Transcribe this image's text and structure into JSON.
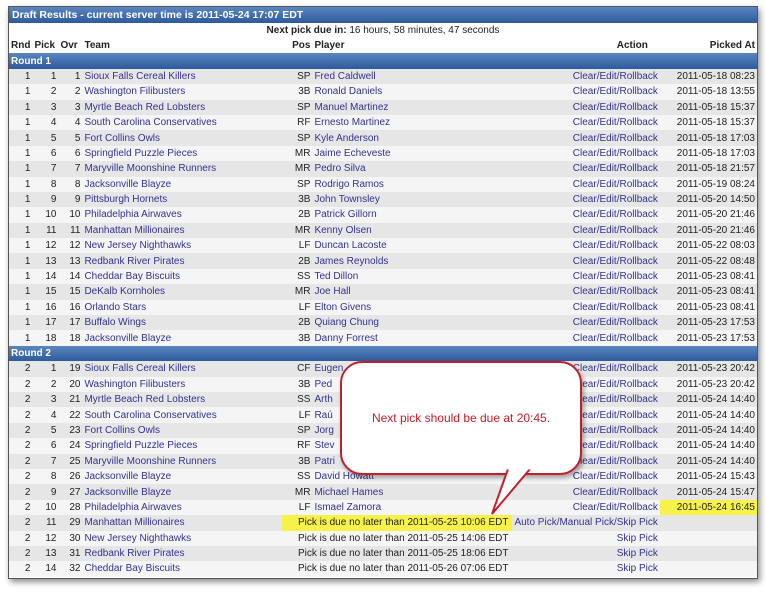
{
  "title": "Draft Results - current server time is 2011-05-24 17:07 EDT",
  "next_pick_label": "Next pick due in:",
  "next_pick_value": " 16 hours, 58 minutes, 47 seconds",
  "headers": {
    "rnd": "Rnd",
    "pick": "Pick",
    "ovr": "Ovr",
    "team": "Team",
    "pos": "Pos",
    "player": "Player",
    "action": "Action",
    "picked_at": "Picked At"
  },
  "highlight_color": "#f6f24a",
  "callout": "Next pick should be due at 20:45.",
  "rounds": [
    {
      "label": "Round 1",
      "picks": [
        [
          "1",
          "1",
          "1",
          "Sioux Falls Cereal Killers",
          "SP",
          "Fred Caldwell",
          "Clear/Edit/Rollback",
          "2011-05-18 08:23"
        ],
        [
          "1",
          "2",
          "2",
          "Washington Filibusters",
          "3B",
          "Ronald Daniels",
          "Clear/Edit/Rollback",
          "2011-05-18 13:55"
        ],
        [
          "1",
          "3",
          "3",
          "Myrtle Beach Red Lobsters",
          "SP",
          "Manuel Martinez",
          "Clear/Edit/Rollback",
          "2011-05-18 15:37"
        ],
        [
          "1",
          "4",
          "4",
          "South Carolina Conservatives",
          "RF",
          "Ernesto Martinez",
          "Clear/Edit/Rollback",
          "2011-05-18 15:37"
        ],
        [
          "1",
          "5",
          "5",
          "Fort Collins Owls",
          "SP",
          "Kyle Anderson",
          "Clear/Edit/Rollback",
          "2011-05-18 17:03"
        ],
        [
          "1",
          "6",
          "6",
          "Springfield Puzzle Pieces",
          "MR",
          "Jaime Echeveste",
          "Clear/Edit/Rollback",
          "2011-05-18 17:03"
        ],
        [
          "1",
          "7",
          "7",
          "Maryville Moonshine Runners",
          "MR",
          "Pedro Silva",
          "Clear/Edit/Rollback",
          "2011-05-18 21:57"
        ],
        [
          "1",
          "8",
          "8",
          "Jacksonville Blayze",
          "SP",
          "Rodrigo Ramos",
          "Clear/Edit/Rollback",
          "2011-05-19 08:24"
        ],
        [
          "1",
          "9",
          "9",
          "Pittsburgh Hornets",
          "3B",
          "John Townsley",
          "Clear/Edit/Rollback",
          "2011-05-20 14:50"
        ],
        [
          "1",
          "10",
          "10",
          "Philadelphia Airwaves",
          "2B",
          "Patrick Gillorn",
          "Clear/Edit/Rollback",
          "2011-05-20 21:46"
        ],
        [
          "1",
          "11",
          "11",
          "Manhattan Millionaires",
          "MR",
          "Kenny Olsen",
          "Clear/Edit/Rollback",
          "2011-05-20 21:46"
        ],
        [
          "1",
          "12",
          "12",
          "New Jersey Nighthawks",
          "LF",
          "Duncan Lacoste",
          "Clear/Edit/Rollback",
          "2011-05-22 08:03"
        ],
        [
          "1",
          "13",
          "13",
          "Redbank River Pirates",
          "2B",
          "James Reynolds",
          "Clear/Edit/Rollback",
          "2011-05-22 08:48"
        ],
        [
          "1",
          "14",
          "14",
          "Cheddar Bay Biscuits",
          "SS",
          "Ted Dillon",
          "Clear/Edit/Rollback",
          "2011-05-23 08:41"
        ],
        [
          "1",
          "15",
          "15",
          "DeKalb Kornholes",
          "MR",
          "Joe Hall",
          "Clear/Edit/Rollback",
          "2011-05-23 08:41"
        ],
        [
          "1",
          "16",
          "16",
          "Orlando Stars",
          "LF",
          "Elton Givens",
          "Clear/Edit/Rollback",
          "2011-05-23 08:41"
        ],
        [
          "1",
          "17",
          "17",
          "Buffalo Wings",
          "2B",
          "Quiang Chung",
          "Clear/Edit/Rollback",
          "2011-05-23 17:53"
        ],
        [
          "1",
          "18",
          "18",
          "Jacksonville Blayze",
          "3B",
          "Danny Forrest",
          "Clear/Edit/Rollback",
          "2011-05-23 17:53"
        ]
      ]
    },
    {
      "label": "Round 2",
      "picks": [
        [
          "2",
          "1",
          "19",
          "Sioux Falls Cereal Killers",
          "CF",
          "Eugen",
          "Clear/Edit/Rollback",
          "2011-05-23 20:42"
        ],
        [
          "2",
          "2",
          "20",
          "Washington Filibusters",
          "3B",
          "Ped",
          "Clear/Edit/Rollback",
          "2011-05-23 20:42"
        ],
        [
          "2",
          "3",
          "21",
          "Myrtle Beach Red Lobsters",
          "SS",
          "Arth",
          "Clear/Edit/Rollback",
          "2011-05-24 14:40"
        ],
        [
          "2",
          "4",
          "22",
          "South Carolina Conservatives",
          "LF",
          "Raú",
          "Clear/Edit/Rollback",
          "2011-05-24 14:40"
        ],
        [
          "2",
          "5",
          "23",
          "Fort Collins Owls",
          "SP",
          "Jorg",
          "Clear/Edit/Rollback",
          "2011-05-24 14:40"
        ],
        [
          "2",
          "6",
          "24",
          "Springfield Puzzle Pieces",
          "RF",
          "Stev",
          "Clear/Edit/Rollback",
          "2011-05-24 14:40"
        ],
        [
          "2",
          "7",
          "25",
          "Maryville Moonshine Runners",
          "3B",
          "Patri",
          "Clear/Edit/Rollback",
          "2011-05-24 14:40"
        ],
        [
          "2",
          "8",
          "26",
          "Jacksonville Blayze",
          "SS",
          "David Howatt",
          "Clear/Edit/Rollback",
          "2011-05-24 15:43"
        ],
        [
          "2",
          "9",
          "27",
          "Jacksonville Blayze",
          "MR",
          "Michael Hames",
          "Clear/Edit/Rollback",
          "2011-05-24 15:47"
        ],
        [
          "2",
          "10",
          "28",
          "Philadelphia Airwaves",
          "LF",
          "Ismael Zamora",
          "Clear/Edit/Rollback",
          "2011-05-24 16:45"
        ]
      ],
      "pending": [
        [
          "2",
          "11",
          "29",
          "Manhattan Millionaires",
          "Pick is due no later than 2011-05-25 10:06 EDT",
          "Auto Pick/Manual Pick/Skip Pick"
        ],
        [
          "2",
          "12",
          "30",
          "New Jersey Nighthawks",
          "Pick is due no later than 2011-05-25 14:06 EDT",
          "Skip Pick"
        ],
        [
          "2",
          "13",
          "31",
          "Redbank River Pirates",
          "Pick is due no later than 2011-05-25 18:06 EDT",
          "Skip Pick"
        ],
        [
          "2",
          "14",
          "32",
          "Cheddar Bay Biscuits",
          "Pick is due no later than 2011-05-26 07:06 EDT",
          "Skip Pick"
        ]
      ]
    }
  ]
}
